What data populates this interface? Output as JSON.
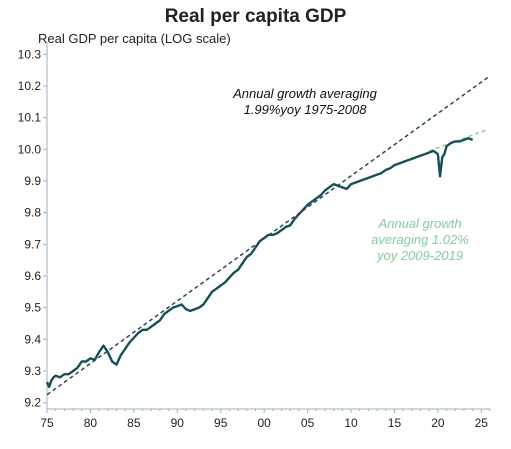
{
  "chart_data": {
    "type": "line",
    "title": "Real per capita GDP",
    "ylabel": "Real GDP per capita (LOG scale)",
    "xlabel": "",
    "xlim": [
      1975,
      2026
    ],
    "ylim": [
      9.18,
      10.32
    ],
    "y_ticks": [
      "9.2",
      "9.3",
      "9.4",
      "9.5",
      "9.6",
      "9.7",
      "9.8",
      "9.9",
      "10.0",
      "10.1",
      "10.2",
      "10.3"
    ],
    "x_ticks": [
      "75",
      "80",
      "85",
      "90",
      "95",
      "00",
      "05",
      "10",
      "15",
      "20",
      "25"
    ],
    "series": [
      {
        "color": "#14505a",
        "x": [
          1975.0,
          1975.25,
          1975.5,
          1975.75,
          1976.0,
          1976.5,
          1977.0,
          1977.5,
          1978.0,
          1978.5,
          1979.0,
          1979.5,
          1980.0,
          1980.5,
          1981.0,
          1981.5,
          1982.0,
          1982.5,
          1983.0,
          1983.5,
          1984.0,
          1984.5,
          1985.0,
          1985.5,
          1986.0,
          1986.5,
          1987.0,
          1987.5,
          1988.0,
          1988.5,
          1989.0,
          1989.5,
          1990.0,
          1990.5,
          1991.0,
          1991.5,
          1992.0,
          1992.5,
          1993.0,
          1993.5,
          1994.0,
          1994.5,
          1995.0,
          1995.5,
          1996.0,
          1996.5,
          1997.0,
          1997.5,
          1998.0,
          1998.5,
          1999.0,
          1999.5,
          2000.0,
          2000.5,
          2001.0,
          2001.5,
          2002.0,
          2002.5,
          2003.0,
          2003.5,
          2004.0,
          2004.5,
          2005.0,
          2005.5,
          2006.0,
          2006.5,
          2007.0,
          2007.5,
          2008.0,
          2008.5,
          2009.0,
          2009.5,
          2010.0,
          2010.5,
          2011.0,
          2011.5,
          2012.0,
          2012.5,
          2013.0,
          2013.5,
          2014.0,
          2014.5,
          2015.0,
          2015.5,
          2016.0,
          2016.5,
          2017.0,
          2017.5,
          2018.0,
          2018.5,
          2019.0,
          2019.5,
          2020.0,
          2020.25,
          2020.5,
          2020.75,
          2021.0,
          2021.5,
          2022.0,
          2022.5,
          2023.0,
          2023.5,
          2024.0
        ],
        "values": [
          9.265,
          9.25,
          9.27,
          9.28,
          9.285,
          9.28,
          9.29,
          9.29,
          9.3,
          9.31,
          9.33,
          9.33,
          9.34,
          9.335,
          9.36,
          9.38,
          9.36,
          9.33,
          9.32,
          9.35,
          9.37,
          9.39,
          9.405,
          9.42,
          9.43,
          9.43,
          9.44,
          9.45,
          9.46,
          9.48,
          9.49,
          9.5,
          9.505,
          9.51,
          9.495,
          9.49,
          9.495,
          9.5,
          9.51,
          9.53,
          9.55,
          9.56,
          9.57,
          9.58,
          9.595,
          9.61,
          9.62,
          9.64,
          9.66,
          9.67,
          9.69,
          9.71,
          9.72,
          9.73,
          9.73,
          9.735,
          9.745,
          9.755,
          9.76,
          9.78,
          9.795,
          9.81,
          9.825,
          9.835,
          9.845,
          9.855,
          9.87,
          9.88,
          9.89,
          9.885,
          9.88,
          9.875,
          9.89,
          9.895,
          9.9,
          9.905,
          9.91,
          9.915,
          9.92,
          9.925,
          9.935,
          9.94,
          9.95,
          9.955,
          9.96,
          9.965,
          9.97,
          9.975,
          9.98,
          9.985,
          9.99,
          9.995,
          9.985,
          9.915,
          9.975,
          9.985,
          10.01,
          10.02,
          10.025,
          10.025,
          10.03,
          10.035,
          10.03
        ]
      }
    ],
    "trend_lines": [
      {
        "color": "#2a4c58",
        "style": "dashed",
        "x": [
          1975,
          2026
        ],
        "values": [
          9.225,
          10.232
        ]
      },
      {
        "color": "#8fd3a3",
        "style": "dashed",
        "x": [
          2019,
          2025.5
        ],
        "values": [
          9.995,
          10.06
        ]
      }
    ],
    "annotations": [
      {
        "text_lines": [
          "Annual growth averaging",
          "1.99%yoy 1975-2008"
        ],
        "color": "#111111"
      },
      {
        "text_lines": [
          "Annual growth",
          "averaging 1.02%",
          "yoy 2009-2019"
        ],
        "color": "#7fd39a"
      }
    ],
    "grid": false,
    "colors": {
      "series": "#14505a",
      "trend_1975_2008": "#2a4c58",
      "trend_2009_2019": "#8fd3a3",
      "axis": "#9ab0c8"
    }
  }
}
